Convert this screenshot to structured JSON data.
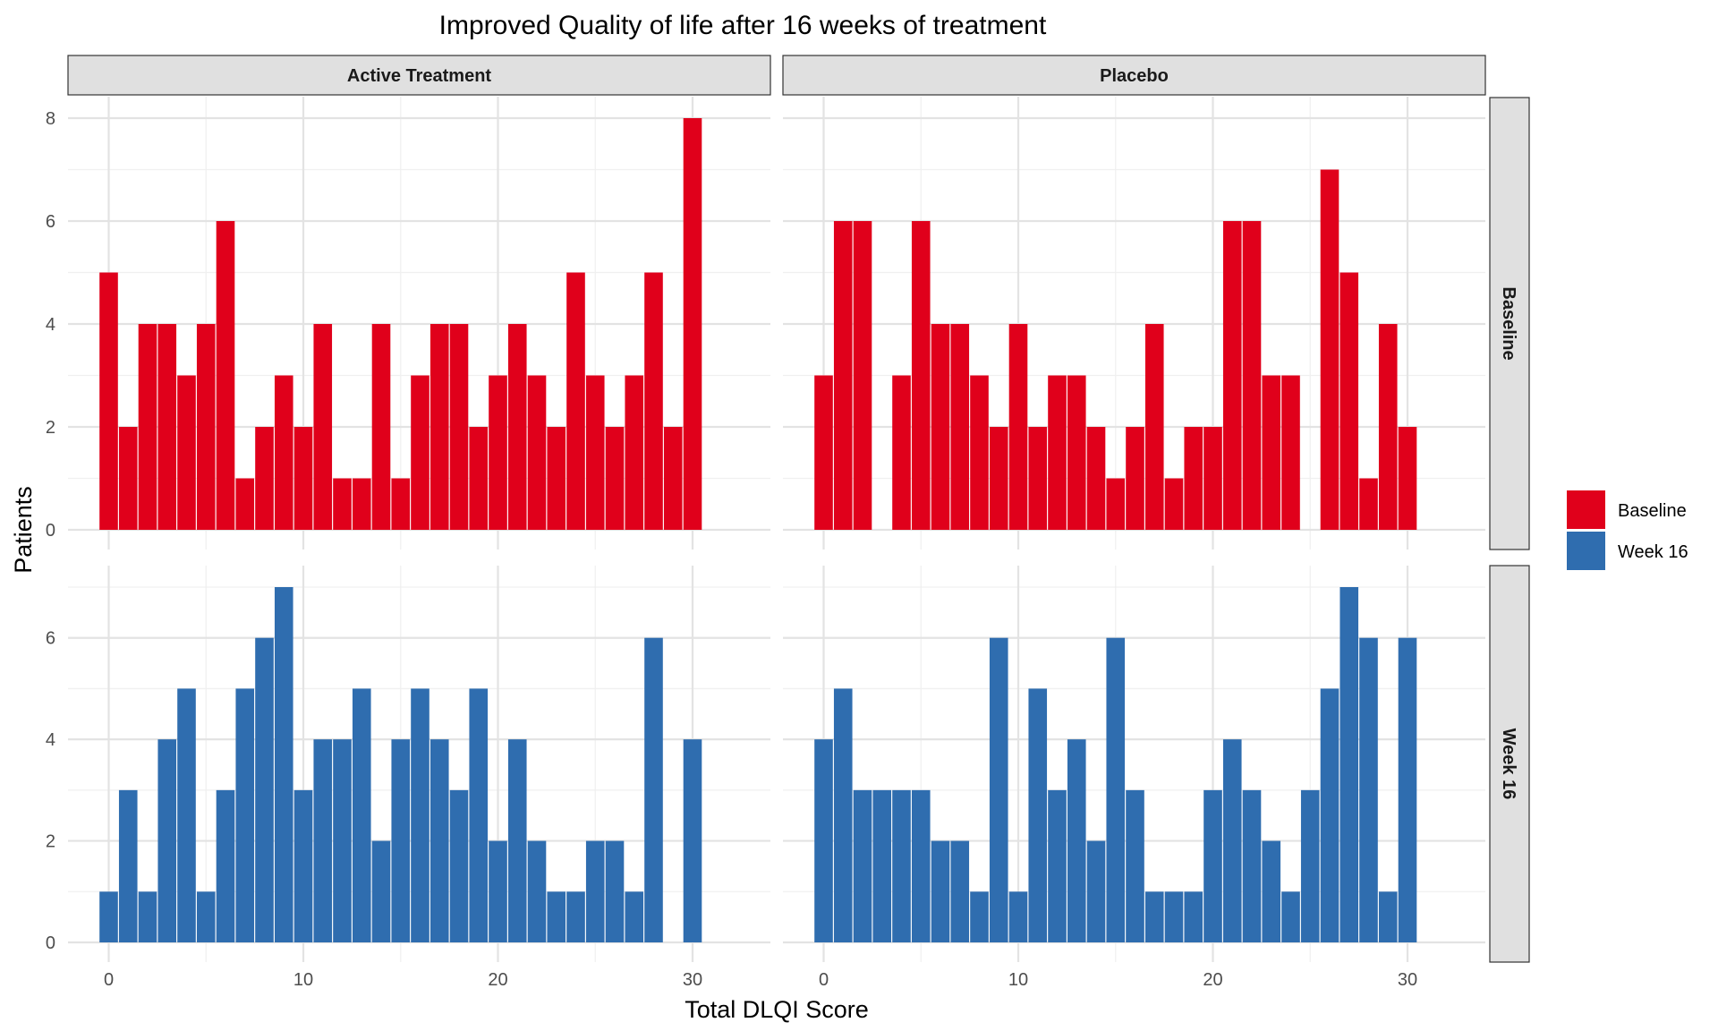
{
  "chart_data": {
    "type": "bar",
    "title": "Improved Quality of life after 16 weeks of treatment",
    "xlabel": "Total DLQI Score",
    "ylabel": "Patients",
    "x": [
      0,
      1,
      2,
      3,
      4,
      5,
      6,
      7,
      8,
      9,
      10,
      11,
      12,
      13,
      14,
      15,
      16,
      17,
      18,
      19,
      20,
      21,
      22,
      23,
      24,
      25,
      26,
      27,
      28,
      29,
      30
    ],
    "xlim": [
      0,
      30
    ],
    "xticks": [
      0,
      10,
      20,
      30
    ],
    "columns": [
      "Active Treatment",
      "Placebo"
    ],
    "rows": [
      {
        "name": "Baseline",
        "ylim": [
          0,
          8
        ],
        "yticks": [
          0,
          2,
          4,
          6,
          8
        ]
      },
      {
        "name": "Week 16",
        "ylim": [
          0,
          7
        ],
        "yticks": [
          0,
          2,
          4,
          6
        ]
      }
    ],
    "grid": true,
    "legend": {
      "position": "right",
      "entries": [
        "Baseline",
        "Week 16"
      ]
    },
    "colors": {
      "Baseline": "#e0001b",
      "Week 16": "#2f6daf"
    },
    "series": [
      {
        "name": "Baseline",
        "facet": "Active Treatment",
        "values": [
          5,
          2,
          4,
          4,
          3,
          4,
          6,
          1,
          2,
          3,
          2,
          4,
          1,
          1,
          4,
          1,
          3,
          4,
          4,
          2,
          3,
          4,
          3,
          2,
          5,
          3,
          2,
          3,
          5,
          2,
          8
        ]
      },
      {
        "name": "Baseline",
        "facet": "Placebo",
        "values": [
          3,
          6,
          6,
          0,
          3,
          6,
          4,
          4,
          3,
          2,
          4,
          2,
          3,
          3,
          2,
          1,
          2,
          4,
          1,
          2,
          2,
          6,
          6,
          3,
          3,
          0,
          7,
          5,
          1,
          4,
          2
        ]
      },
      {
        "name": "Week 16",
        "facet": "Active Treatment",
        "values": [
          1,
          3,
          1,
          4,
          5,
          1,
          3,
          5,
          6,
          7,
          3,
          4,
          4,
          5,
          2,
          4,
          5,
          4,
          3,
          5,
          2,
          4,
          2,
          1,
          1,
          2,
          2,
          1,
          6,
          0,
          4
        ]
      },
      {
        "name": "Week 16",
        "facet": "Placebo",
        "values": [
          4,
          5,
          3,
          3,
          3,
          3,
          2,
          2,
          1,
          6,
          1,
          5,
          3,
          4,
          2,
          6,
          3,
          1,
          1,
          1,
          3,
          4,
          3,
          2,
          1,
          3,
          5,
          7,
          6,
          1,
          6
        ]
      }
    ]
  }
}
